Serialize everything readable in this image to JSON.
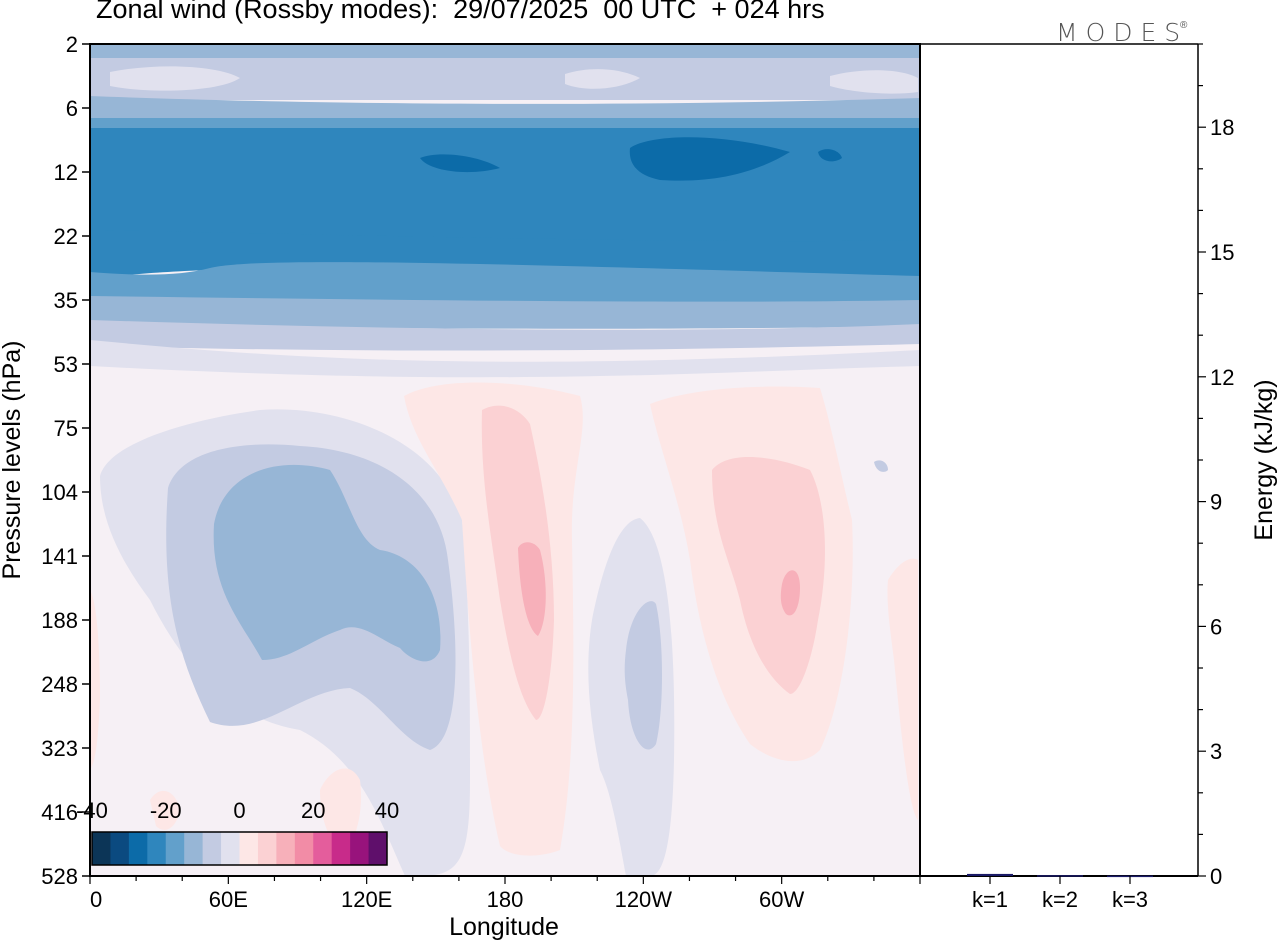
{
  "title": "Zonal wind (Rossby modes):  29/07/2025  00 UTC  + 024 hrs",
  "brand": "MODES",
  "brand_mark": "®",
  "colors": {
    "neg": [
      "#0c3557",
      "#0b4a80",
      "#0c6ba8",
      "#2f86bd",
      "#62a0cb",
      "#97b6d6",
      "#c3cbe2",
      "#e1e1ee"
    ],
    "zero": "#f6f0f5",
    "pos": [
      "#fde7e6",
      "#fbd1d3",
      "#f7b0ba",
      "#f28ca6",
      "#e45d9c",
      "#c82b8a",
      "#98137c",
      "#5f0f6b"
    ]
  },
  "chart_data": [
    {
      "type": "heatmap",
      "title": "Zonal wind (Rossby modes)",
      "xlabel": "Longitude",
      "ylabel": "Pressure levels (hPa)",
      "x_ticks": [
        "0",
        "60E",
        "120E",
        "180",
        "120W",
        "60W"
      ],
      "y_ticks": [
        "2",
        "6",
        "12",
        "22",
        "35",
        "53",
        "75",
        "104",
        "141",
        "188",
        "248",
        "323",
        "416",
        "528"
      ],
      "colorbar": {
        "ticks": [
          "-40",
          "-20",
          "0",
          "20",
          "40"
        ],
        "range": [
          -40,
          40
        ],
        "step": 5
      },
      "bands": [
        {
          "p": "2",
          "value": -10
        },
        {
          "p": "6",
          "value": -15
        },
        {
          "p": "12",
          "value": -25
        },
        {
          "p": "22",
          "value": -20
        },
        {
          "p": "35",
          "value": -12
        },
        {
          "p": "53",
          "value": -5
        },
        {
          "p": "75",
          "value": 0
        }
      ],
      "anomalies": [
        {
          "name": "westerly-cell-60E",
          "lon": 75,
          "p": "141",
          "value": -15
        },
        {
          "name": "easterly-cell-180",
          "lon": 190,
          "p": "141",
          "value": 15
        },
        {
          "name": "westerly-cell-120W",
          "lon": 245,
          "p": "248",
          "value": -10
        },
        {
          "name": "easterly-cell-60W",
          "lon": 300,
          "p": "141",
          "value": 15
        }
      ]
    },
    {
      "type": "bar",
      "ylabel": "Energy (kJ/kg)",
      "categories": [
        "k=1",
        "k=2",
        "k=3"
      ],
      "values": [
        0.05,
        0.02,
        0.01
      ],
      "ylim": [
        0,
        20
      ],
      "y_ticks": [
        "0",
        "3",
        "6",
        "9",
        "12",
        "15",
        "18"
      ],
      "bar_color": "#1a1a66"
    }
  ]
}
